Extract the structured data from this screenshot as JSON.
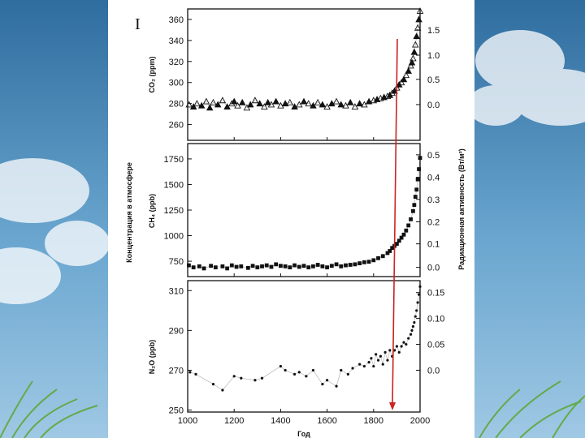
{
  "figure_numeral": "I",
  "y_label_left_shared": "Концентрация в атмосфере",
  "y_label_right_shared": "Радиационная активность (Вт/м²)",
  "x_label": "Год",
  "colors": {
    "marker_arrow": "#cc2222",
    "data": "#111111"
  },
  "chart_data": [
    {
      "type": "scatter",
      "ylabel": "CO₂ (ppm)",
      "xlim": [
        1000,
        2000
      ],
      "ylim": [
        245,
        370
      ],
      "yticks": [
        "260",
        "280",
        "300",
        "320",
        "340",
        "360"
      ],
      "y2ticks": [
        "0.0",
        "0.5",
        "1.0",
        "1.5"
      ],
      "y2_values": [
        0,
        0.5,
        1.0,
        1.5
      ],
      "y2_at_y": [
        279,
        303,
        326,
        350
      ],
      "marker": "triangle",
      "x": [
        1006,
        1025,
        1040,
        1060,
        1080,
        1095,
        1110,
        1130,
        1150,
        1170,
        1190,
        1200,
        1215,
        1235,
        1255,
        1270,
        1290,
        1310,
        1330,
        1345,
        1360,
        1380,
        1400,
        1420,
        1440,
        1460,
        1480,
        1500,
        1520,
        1540,
        1560,
        1580,
        1600,
        1620,
        1640,
        1660,
        1680,
        1700,
        1720,
        1740,
        1760,
        1780,
        1800,
        1815,
        1830,
        1845,
        1860,
        1870,
        1880,
        1890,
        1900,
        1910,
        1920,
        1930,
        1940,
        1950,
        1960,
        1965,
        1970,
        1975,
        1980,
        1985,
        1990,
        1995,
        2000
      ],
      "y": [
        279,
        277,
        280,
        278,
        282,
        276,
        281,
        279,
        283,
        277,
        280,
        282,
        278,
        281,
        276,
        279,
        283,
        280,
        277,
        281,
        279,
        282,
        278,
        280,
        281,
        277,
        279,
        282,
        280,
        278,
        281,
        279,
        277,
        280,
        282,
        279,
        278,
        281,
        277,
        280,
        279,
        282,
        283,
        284,
        285,
        286,
        287,
        288,
        290,
        292,
        295,
        298,
        300,
        303,
        307,
        311,
        316,
        319,
        323,
        329,
        336,
        344,
        352,
        360,
        368
      ]
    },
    {
      "type": "scatter",
      "ylabel": "CH₄ (ppb)",
      "xlim": [
        1000,
        2000
      ],
      "ylim": [
        600,
        1900
      ],
      "yticks": [
        "750",
        "1000",
        "1250",
        "1500",
        "1750"
      ],
      "y2ticks": [
        "0.0",
        "0.1",
        "0.2",
        "0.3",
        "0.4",
        "0.5"
      ],
      "y2_values": [
        0,
        0.1,
        0.2,
        0.3,
        0.4,
        0.5
      ],
      "y2_at_y": [
        690,
        920,
        1135,
        1355,
        1570,
        1790
      ],
      "marker": "square",
      "x": [
        1005,
        1025,
        1050,
        1070,
        1100,
        1120,
        1150,
        1170,
        1190,
        1210,
        1230,
        1260,
        1280,
        1300,
        1320,
        1340,
        1360,
        1380,
        1400,
        1420,
        1440,
        1460,
        1480,
        1500,
        1520,
        1540,
        1560,
        1580,
        1600,
        1620,
        1640,
        1660,
        1680,
        1700,
        1720,
        1740,
        1760,
        1780,
        1800,
        1820,
        1840,
        1860,
        1870,
        1880,
        1890,
        1900,
        1910,
        1920,
        1930,
        1940,
        1950,
        1960,
        1970,
        1975,
        1980,
        1985,
        1990,
        1995,
        2000
      ],
      "y": [
        710,
        690,
        700,
        680,
        705,
        690,
        700,
        680,
        710,
        695,
        700,
        685,
        705,
        690,
        700,
        710,
        695,
        720,
        705,
        700,
        690,
        710,
        695,
        705,
        690,
        700,
        715,
        700,
        690,
        705,
        720,
        700,
        710,
        715,
        720,
        730,
        740,
        745,
        760,
        780,
        800,
        830,
        850,
        880,
        900,
        920,
        950,
        980,
        1010,
        1050,
        1100,
        1160,
        1240,
        1300,
        1380,
        1450,
        1550,
        1650,
        1760
      ]
    },
    {
      "type": "scatter",
      "ylabel": "N₂O (ppb)",
      "xlim": [
        1000,
        2000
      ],
      "ylim": [
        249,
        315
      ],
      "yticks": [
        "250",
        "270",
        "290",
        "310"
      ],
      "y2ticks": [
        "0.0",
        "0.05",
        "0.10",
        "0.15"
      ],
      "y2_values": [
        0,
        0.05,
        0.1,
        0.15
      ],
      "y2_at_y": [
        270,
        283,
        296,
        309
      ],
      "marker": "dot",
      "x": [
        1010,
        1035,
        1110,
        1150,
        1200,
        1230,
        1290,
        1320,
        1400,
        1420,
        1460,
        1480,
        1510,
        1540,
        1580,
        1600,
        1640,
        1660,
        1690,
        1710,
        1740,
        1760,
        1780,
        1790,
        1800,
        1810,
        1820,
        1830,
        1840,
        1850,
        1860,
        1870,
        1880,
        1890,
        1900,
        1910,
        1920,
        1930,
        1940,
        1950,
        1960,
        1965,
        1970,
        1975,
        1980,
        1985,
        1990,
        1995,
        2000
      ],
      "y": [
        269,
        268,
        263,
        260,
        267,
        266,
        265,
        266,
        272,
        270,
        268,
        269,
        267,
        270,
        263,
        265,
        262,
        270,
        268,
        271,
        273,
        272,
        274,
        276,
        272,
        278,
        275,
        277,
        273,
        279,
        275,
        280,
        277,
        280,
        282,
        279,
        282,
        284,
        283,
        286,
        288,
        290,
        292,
        294,
        297,
        300,
        304,
        308,
        312
      ]
    }
  ],
  "x_axis": {
    "ticks": [
      "1000",
      "1200",
      "1400",
      "1600",
      "1800",
      "2000"
    ]
  }
}
